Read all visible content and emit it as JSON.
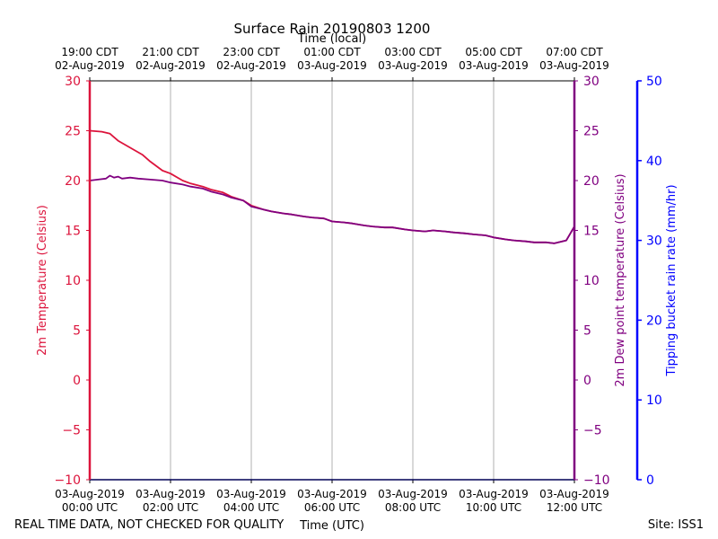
{
  "chart_data": {
    "type": "line",
    "title": "Surface Rain 20190803 1200",
    "top_axis_label": "Time (local)",
    "xlabel": "Time (UTC)",
    "ylabel_left": "2m Temperature (Celsius)",
    "ylabel_right": "2m Dew point temperature (Celsius)",
    "ylabel_rain": "Tipping bucket rain rate (mm/hr)",
    "footer_left": "REAL TIME DATA, NOT CHECKED FOR QUALITY",
    "footer_right": "Site: ISS1",
    "xlim_hours": [
      0,
      12
    ],
    "ylim": [
      -10,
      30
    ],
    "ylim_rain": [
      0,
      50
    ],
    "left_ticks": [
      "30",
      "25",
      "20",
      "15",
      "10",
      "5",
      "0",
      "−5",
      "−10"
    ],
    "right_ticks": [
      "30",
      "25",
      "20",
      "15",
      "10",
      "5",
      "0",
      "−5",
      "−10"
    ],
    "rain_ticks": [
      "50",
      "40",
      "30",
      "20",
      "10",
      "0"
    ],
    "bottom_ticks": [
      {
        "h": 0,
        "line1": "03-Aug-2019",
        "line2": "00:00 UTC"
      },
      {
        "h": 2,
        "line1": "03-Aug-2019",
        "line2": "02:00 UTC"
      },
      {
        "h": 4,
        "line1": "03-Aug-2019",
        "line2": "04:00 UTC"
      },
      {
        "h": 6,
        "line1": "03-Aug-2019",
        "line2": "06:00 UTC"
      },
      {
        "h": 8,
        "line1": "03-Aug-2019",
        "line2": "08:00 UTC"
      },
      {
        "h": 10,
        "line1": "03-Aug-2019",
        "line2": "10:00 UTC"
      },
      {
        "h": 12,
        "line1": "03-Aug-2019",
        "line2": "12:00 UTC"
      }
    ],
    "top_ticks": [
      {
        "h": 0,
        "line1": "19:00 CDT",
        "line2": "02-Aug-2019"
      },
      {
        "h": 2,
        "line1": "21:00 CDT",
        "line2": "02-Aug-2019"
      },
      {
        "h": 4,
        "line1": "23:00 CDT",
        "line2": "02-Aug-2019"
      },
      {
        "h": 6,
        "line1": "01:00 CDT",
        "line2": "03-Aug-2019"
      },
      {
        "h": 8,
        "line1": "03:00 CDT",
        "line2": "03-Aug-2019"
      },
      {
        "h": 10,
        "line1": "05:00 CDT",
        "line2": "03-Aug-2019"
      },
      {
        "h": 12,
        "line1": "07:00 CDT",
        "line2": "03-Aug-2019"
      }
    ],
    "colors": {
      "temperature": "#dc143c",
      "dewpoint": "#800080",
      "rain": "#0000ff",
      "grid": "#b0b0b0"
    },
    "series": [
      {
        "name": "2m Temperature",
        "color": "#dc143c",
        "x": [
          0,
          0.3,
          0.5,
          0.7,
          1.0,
          1.3,
          1.5,
          1.8,
          2.0,
          2.3,
          2.5,
          2.8,
          3.0,
          3.3,
          3.5,
          3.8,
          4.0,
          4.3,
          4.5,
          4.8,
          5.0,
          5.3,
          5.5,
          5.8,
          6.0,
          6.3,
          6.5,
          6.8,
          7.0,
          7.3,
          7.5,
          7.8,
          8.0,
          8.3,
          8.5,
          8.8,
          9.0,
          9.3,
          9.5,
          9.8,
          10.0,
          10.3,
          10.5,
          10.8,
          11.0,
          11.3,
          11.5,
          11.8,
          12.0
        ],
        "values": [
          25.0,
          24.9,
          24.7,
          24.0,
          23.3,
          22.6,
          21.9,
          21.0,
          20.7,
          20.0,
          19.7,
          19.4,
          19.1,
          18.8,
          18.4,
          18.0,
          17.5,
          17.1,
          16.9,
          16.7,
          16.6,
          16.4,
          16.3,
          16.2,
          15.9,
          15.8,
          15.7,
          15.5,
          15.4,
          15.3,
          15.3,
          15.1,
          15.0,
          14.9,
          15.0,
          14.9,
          14.8,
          14.7,
          14.6,
          14.5,
          14.3,
          14.1,
          14.0,
          13.9,
          13.8,
          13.8,
          13.7,
          14.0,
          15.4
        ]
      },
      {
        "name": "2m Dew point temperature",
        "color": "#800080",
        "x": [
          0,
          0.2,
          0.4,
          0.5,
          0.6,
          0.7,
          0.8,
          1.0,
          1.2,
          1.5,
          1.8,
          2.0,
          2.3,
          2.5,
          2.8,
          3.0,
          3.3,
          3.5,
          3.8,
          4.0,
          4.3,
          4.5,
          4.8,
          5.0,
          5.3,
          5.5,
          5.8,
          6.0,
          6.3,
          6.5,
          6.8,
          7.0,
          7.3,
          7.5,
          7.8,
          8.0,
          8.3,
          8.5,
          8.8,
          9.0,
          9.3,
          9.5,
          9.8,
          10.0,
          10.3,
          10.5,
          10.8,
          11.0,
          11.3,
          11.5,
          11.8,
          12.0
        ],
        "values": [
          20.0,
          20.1,
          20.2,
          20.5,
          20.3,
          20.4,
          20.2,
          20.3,
          20.2,
          20.1,
          20.0,
          19.8,
          19.6,
          19.4,
          19.2,
          18.9,
          18.6,
          18.3,
          18.0,
          17.4,
          17.1,
          16.9,
          16.7,
          16.6,
          16.4,
          16.3,
          16.2,
          15.9,
          15.8,
          15.7,
          15.5,
          15.4,
          15.3,
          15.3,
          15.1,
          15.0,
          14.9,
          15.0,
          14.9,
          14.8,
          14.7,
          14.6,
          14.5,
          14.3,
          14.1,
          14.0,
          13.9,
          13.8,
          13.8,
          13.7,
          14.0,
          15.4
        ]
      }
    ],
    "rain_values": {
      "x": [
        0,
        12
      ],
      "values": [
        0,
        0
      ]
    }
  }
}
